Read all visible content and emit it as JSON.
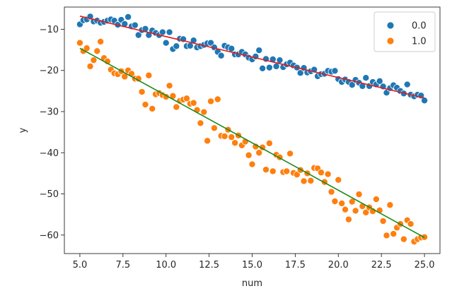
{
  "chart_data": {
    "type": "scatter",
    "xlabel": "num",
    "ylabel": "y",
    "xlim": [
      4.1,
      25.9
    ],
    "ylim": [
      -64.5,
      -4.6
    ],
    "xticks": [
      {
        "value": 5.0,
        "label": "5.0"
      },
      {
        "value": 7.5,
        "label": "7.5"
      },
      {
        "value": 10.0,
        "label": "10.0"
      },
      {
        "value": 12.5,
        "label": "12.5"
      },
      {
        "value": 15.0,
        "label": "15.0"
      },
      {
        "value": 17.5,
        "label": "17.5"
      },
      {
        "value": 20.0,
        "label": "20.0"
      },
      {
        "value": 22.5,
        "label": "22.5"
      },
      {
        "value": 25.0,
        "label": "25.0"
      }
    ],
    "yticks": [
      {
        "value": -10,
        "label": "−10"
      },
      {
        "value": -20,
        "label": "−20"
      },
      {
        "value": -30,
        "label": "−30"
      },
      {
        "value": -40,
        "label": "−40"
      },
      {
        "value": -50,
        "label": "−50"
      },
      {
        "value": -60,
        "label": "−60"
      }
    ],
    "grid": false,
    "legend": {
      "position": "top-right",
      "entries": [
        {
          "label": "0.0",
          "color": "#1f77b4"
        },
        {
          "label": "1.0",
          "color": "#ff7f0e"
        }
      ]
    },
    "series": [
      {
        "name": "0.0",
        "color": "#1f77b4",
        "points": [
          [
            5.0,
            -8.8
          ],
          [
            5.2,
            -7.8
          ],
          [
            5.4,
            -7.6
          ],
          [
            5.6,
            -6.9
          ],
          [
            5.8,
            -8.1
          ],
          [
            6.0,
            -7.9
          ],
          [
            6.2,
            -8.4
          ],
          [
            6.4,
            -8.2
          ],
          [
            6.6,
            -7.9
          ],
          [
            6.8,
            -7.6
          ],
          [
            7.0,
            -7.9
          ],
          [
            7.2,
            -8.9
          ],
          [
            7.4,
            -7.7
          ],
          [
            7.6,
            -8.7
          ],
          [
            7.8,
            -7.0
          ],
          [
            8.0,
            -9.3
          ],
          [
            8.2,
            -9.0
          ],
          [
            8.4,
            -11.4
          ],
          [
            8.6,
            -10.2
          ],
          [
            8.8,
            -9.9
          ],
          [
            9.0,
            -11.4
          ],
          [
            9.2,
            -10.3
          ],
          [
            9.4,
            -10.9
          ],
          [
            9.6,
            -11.4
          ],
          [
            9.8,
            -10.7
          ],
          [
            10.0,
            -13.3
          ],
          [
            10.2,
            -10.7
          ],
          [
            10.4,
            -14.8
          ],
          [
            10.6,
            -14.1
          ],
          [
            10.8,
            -12.3
          ],
          [
            11.0,
            -12.4
          ],
          [
            11.2,
            -14.1
          ],
          [
            11.4,
            -14.0
          ],
          [
            11.6,
            -12.7
          ],
          [
            11.8,
            -14.4
          ],
          [
            12.0,
            -14.1
          ],
          [
            12.2,
            -13.8
          ],
          [
            12.4,
            -13.4
          ],
          [
            12.6,
            -13.3
          ],
          [
            12.8,
            -14.4
          ],
          [
            13.0,
            -15.5
          ],
          [
            13.2,
            -16.4
          ],
          [
            13.4,
            -14.0
          ],
          [
            13.6,
            -14.4
          ],
          [
            13.8,
            -14.7
          ],
          [
            14.0,
            -16.1
          ],
          [
            14.2,
            -16.1
          ],
          [
            14.4,
            -15.5
          ],
          [
            14.6,
            -16.1
          ],
          [
            14.8,
            -16.9
          ],
          [
            15.0,
            -17.3
          ],
          [
            15.2,
            -16.6
          ],
          [
            15.4,
            -15.1
          ],
          [
            15.6,
            -19.5
          ],
          [
            15.8,
            -17.2
          ],
          [
            16.0,
            -19.3
          ],
          [
            16.2,
            -17.3
          ],
          [
            16.4,
            -19.0
          ],
          [
            16.6,
            -17.5
          ],
          [
            16.8,
            -19.2
          ],
          [
            17.0,
            -18.5
          ],
          [
            17.2,
            -18.1
          ],
          [
            17.4,
            -18.8
          ],
          [
            17.6,
            -19.3
          ],
          [
            17.8,
            -20.6
          ],
          [
            18.0,
            -19.4
          ],
          [
            18.2,
            -20.5
          ],
          [
            18.4,
            -20.2
          ],
          [
            18.6,
            -19.8
          ],
          [
            18.8,
            -21.4
          ],
          [
            19.0,
            -20.9
          ],
          [
            19.2,
            -20.8
          ],
          [
            19.4,
            -20.1
          ],
          [
            19.6,
            -20.3
          ],
          [
            19.8,
            -20.1
          ],
          [
            20.0,
            -22.1
          ],
          [
            20.2,
            -22.8
          ],
          [
            20.4,
            -22.2
          ],
          [
            20.6,
            -22.8
          ],
          [
            20.8,
            -23.5
          ],
          [
            21.0,
            -22.3
          ],
          [
            21.2,
            -23.0
          ],
          [
            21.4,
            -23.8
          ],
          [
            21.6,
            -21.8
          ],
          [
            21.8,
            -23.8
          ],
          [
            22.0,
            -22.8
          ],
          [
            22.2,
            -23.4
          ],
          [
            22.4,
            -22.6
          ],
          [
            22.6,
            -23.9
          ],
          [
            22.8,
            -25.4
          ],
          [
            23.0,
            -24.3
          ],
          [
            23.2,
            -23.6
          ],
          [
            23.4,
            -24.2
          ],
          [
            23.6,
            -25.0
          ],
          [
            23.8,
            -25.6
          ],
          [
            24.0,
            -23.4
          ],
          [
            24.2,
            -25.9
          ],
          [
            24.4,
            -26.3
          ],
          [
            24.6,
            -25.9
          ],
          [
            24.8,
            -26.1
          ],
          [
            25.0,
            -27.3
          ]
        ]
      },
      {
        "name": "1.0",
        "color": "#ff7f0e",
        "points": [
          [
            5.0,
            -13.3
          ],
          [
            5.2,
            -15.3
          ],
          [
            5.4,
            -14.6
          ],
          [
            5.6,
            -19.0
          ],
          [
            5.8,
            -17.5
          ],
          [
            6.0,
            -15.3
          ],
          [
            6.2,
            -13.0
          ],
          [
            6.4,
            -17.0
          ],
          [
            6.6,
            -17.8
          ],
          [
            6.8,
            -19.8
          ],
          [
            7.0,
            -20.7
          ],
          [
            7.2,
            -20.9
          ],
          [
            7.4,
            -20.2
          ],
          [
            7.6,
            -21.5
          ],
          [
            7.8,
            -20.0
          ],
          [
            8.0,
            -20.8
          ],
          [
            8.2,
            -22.0
          ],
          [
            8.4,
            -22.0
          ],
          [
            8.6,
            -25.2
          ],
          [
            8.8,
            -28.3
          ],
          [
            9.0,
            -21.2
          ],
          [
            9.2,
            -29.3
          ],
          [
            9.4,
            -25.8
          ],
          [
            9.6,
            -25.5
          ],
          [
            9.8,
            -26.0
          ],
          [
            10.0,
            -26.4
          ],
          [
            10.2,
            -23.7
          ],
          [
            10.4,
            -26.2
          ],
          [
            10.6,
            -28.9
          ],
          [
            10.8,
            -27.4
          ],
          [
            11.0,
            -27.1
          ],
          [
            11.2,
            -26.8
          ],
          [
            11.4,
            -28.1
          ],
          [
            11.6,
            -27.9
          ],
          [
            11.8,
            -29.6
          ],
          [
            12.0,
            -32.8
          ],
          [
            12.2,
            -30.1
          ],
          [
            12.4,
            -37.1
          ],
          [
            12.6,
            -27.5
          ],
          [
            12.8,
            -34.0
          ],
          [
            13.0,
            -27.0
          ],
          [
            13.2,
            -35.9
          ],
          [
            13.4,
            -36.0
          ],
          [
            13.6,
            -34.4
          ],
          [
            13.8,
            -36.2
          ],
          [
            14.0,
            -37.6
          ],
          [
            14.2,
            -35.8
          ],
          [
            14.4,
            -38.2
          ],
          [
            14.6,
            -37.3
          ],
          [
            14.8,
            -40.6
          ],
          [
            15.0,
            -42.8
          ],
          [
            15.2,
            -38.5
          ],
          [
            15.4,
            -40.0
          ],
          [
            15.6,
            -38.7
          ],
          [
            15.8,
            -44.1
          ],
          [
            16.0,
            -37.7
          ],
          [
            16.2,
            -44.5
          ],
          [
            16.4,
            -40.5
          ],
          [
            16.6,
            -41.1
          ],
          [
            16.8,
            -44.7
          ],
          [
            17.0,
            -44.5
          ],
          [
            17.2,
            -40.2
          ],
          [
            17.4,
            -44.9
          ],
          [
            17.6,
            -45.3
          ],
          [
            17.8,
            -44.2
          ],
          [
            18.0,
            -46.9
          ],
          [
            18.2,
            -45.0
          ],
          [
            18.4,
            -46.8
          ],
          [
            18.6,
            -43.7
          ],
          [
            18.8,
            -43.8
          ],
          [
            19.0,
            -44.8
          ],
          [
            19.2,
            -47.1
          ],
          [
            19.4,
            -45.2
          ],
          [
            19.6,
            -49.5
          ],
          [
            19.8,
            -51.8
          ],
          [
            20.0,
            -46.6
          ],
          [
            20.2,
            -52.3
          ],
          [
            20.4,
            -53.8
          ],
          [
            20.6,
            -56.2
          ],
          [
            20.8,
            -51.9
          ],
          [
            21.0,
            -54.1
          ],
          [
            21.2,
            -50.1
          ],
          [
            21.4,
            -53.0
          ],
          [
            21.6,
            -54.5
          ],
          [
            21.8,
            -53.3
          ],
          [
            22.0,
            -54.2
          ],
          [
            22.2,
            -51.3
          ],
          [
            22.4,
            -54.0
          ],
          [
            22.6,
            -56.6
          ],
          [
            22.8,
            -60.1
          ],
          [
            23.0,
            -52.7
          ],
          [
            23.2,
            -59.7
          ],
          [
            23.4,
            -58.2
          ],
          [
            23.6,
            -57.3
          ],
          [
            23.8,
            -61.0
          ],
          [
            24.0,
            -56.4
          ],
          [
            24.2,
            -57.3
          ],
          [
            24.4,
            -61.6
          ],
          [
            24.6,
            -61.0
          ],
          [
            24.8,
            -60.6
          ],
          [
            25.0,
            -60.5
          ]
        ]
      }
    ],
    "fit_lines": [
      {
        "color": "#e31a1c",
        "x": [
          5.0,
          25.0
        ],
        "y": [
          -6.8,
          -26.7
        ]
      },
      {
        "color": "#1a8a1a",
        "x": [
          5.0,
          25.0
        ],
        "y": [
          -14.6,
          -60.6
        ]
      }
    ]
  }
}
